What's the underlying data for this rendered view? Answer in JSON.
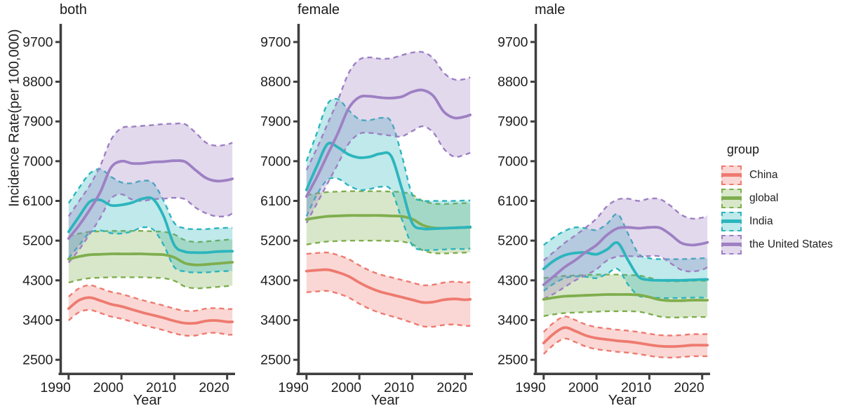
{
  "figure": {
    "y_axis_title": "Incidence Rate(per 100,000)",
    "x_axis_title": "Year",
    "axis_color": "#3e3e3e",
    "text_color": "#1f1f1f",
    "y_ticks": [
      9700,
      8800,
      7900,
      7000,
      6100,
      5200,
      4300,
      3400,
      2500
    ],
    "x_ticks": [
      1990,
      2000,
      2010,
      2020
    ],
    "legend": {
      "title": "group",
      "items": [
        {
          "label": "China",
          "color": "#ee7a70"
        },
        {
          "label": "global",
          "color": "#7fae4e"
        },
        {
          "label": "India",
          "color": "#2cb5bd"
        },
        {
          "label": "the United States",
          "color": "#9e80c3"
        }
      ]
    }
  },
  "chart_data": {
    "type": "line",
    "subtype": "faceted-lines-with-confidence-ribbons",
    "xlabel": "Year",
    "ylabel": "Incidence Rate(per 100,000)",
    "x_domain": [
      1988.7,
      2021.1
    ],
    "y_domain": [
      2200,
      10080
    ],
    "ribbon_opacity": 0.3,
    "legend_position": "right",
    "years": [
      1990,
      1992,
      1994,
      1996,
      1998,
      2000,
      2002,
      2004,
      2006,
      2008,
      2010,
      2012,
      2014,
      2016,
      2018,
      2020,
      2021
    ],
    "facets": [
      {
        "title": "both",
        "series": [
          {
            "name": "China",
            "color": "#ee7a70",
            "center": [
              3660,
              3850,
              3910,
              3840,
              3760,
              3710,
              3640,
              3570,
              3510,
              3450,
              3380,
              3330,
              3330,
              3380,
              3390,
              3360,
              3360
            ],
            "upper": [
              3930,
              4120,
              4190,
              4120,
              4040,
              3990,
              3920,
              3850,
              3790,
              3730,
              3660,
              3610,
              3610,
              3660,
              3670,
              3650,
              3650
            ],
            "lower": [
              3390,
              3580,
              3630,
              3560,
              3480,
              3430,
              3360,
              3290,
              3230,
              3170,
              3100,
              3050,
              3050,
              3100,
              3110,
              3070,
              3070
            ]
          },
          {
            "name": "global",
            "color": "#7fae4e",
            "center": [
              4780,
              4840,
              4880,
              4890,
              4900,
              4900,
              4900,
              4900,
              4890,
              4880,
              4820,
              4690,
              4650,
              4660,
              4680,
              4700,
              4710
            ],
            "upper": [
              5300,
              5360,
              5400,
              5410,
              5420,
              5420,
              5420,
              5420,
              5410,
              5400,
              5340,
              5210,
              5170,
              5180,
              5200,
              5220,
              5230
            ],
            "lower": [
              4250,
              4310,
              4350,
              4360,
              4370,
              4370,
              4370,
              4370,
              4360,
              4350,
              4290,
              4160,
              4120,
              4130,
              4150,
              4170,
              4180
            ]
          },
          {
            "name": "India",
            "color": "#2cb5bd",
            "center": [
              5400,
              5750,
              6080,
              6120,
              6000,
              6010,
              6060,
              6150,
              6140,
              5750,
              5100,
              4950,
              4930,
              4930,
              4950,
              4960,
              4960
            ],
            "upper": [
              6050,
              6400,
              6720,
              6820,
              6650,
              6520,
              6500,
              6560,
              6500,
              6100,
              5600,
              5480,
              5460,
              5460,
              5480,
              5490,
              5490
            ],
            "lower": [
              4800,
              5100,
              5380,
              5430,
              5370,
              5360,
              5410,
              5500,
              5450,
              5100,
              4600,
              4500,
              4480,
              4480,
              4500,
              4510,
              4510
            ]
          },
          {
            "name": "the United States",
            "color": "#9e80c3",
            "center": [
              5250,
              5550,
              5900,
              6300,
              6850,
              7000,
              6950,
              6950,
              6980,
              6990,
              7010,
              6990,
              6800,
              6620,
              6550,
              6570,
              6600
            ],
            "upper": [
              5750,
              6100,
              6450,
              6900,
              7480,
              7750,
              7780,
              7800,
              7820,
              7840,
              7850,
              7840,
              7650,
              7420,
              7350,
              7380,
              7420
            ],
            "lower": [
              4700,
              5000,
              5350,
              5720,
              6150,
              6250,
              6130,
              6100,
              6140,
              6150,
              6170,
              6140,
              5950,
              5820,
              5750,
              5760,
              5820
            ]
          }
        ]
      },
      {
        "title": "female",
        "series": [
          {
            "name": "China",
            "color": "#ee7a70",
            "center": [
              4510,
              4530,
              4540,
              4480,
              4390,
              4250,
              4130,
              4040,
              3980,
              3920,
              3860,
              3800,
              3810,
              3860,
              3880,
              3860,
              3870
            ],
            "upper": [
              4900,
              4920,
              4930,
              4870,
              4780,
              4640,
              4520,
              4430,
              4370,
              4310,
              4250,
              4190,
              4200,
              4250,
              4270,
              4250,
              4260
            ],
            "lower": [
              4030,
              4050,
              4060,
              4000,
              3910,
              3770,
              3650,
              3560,
              3490,
              3420,
              3340,
              3260,
              3250,
              3290,
              3300,
              3270,
              3270
            ]
          },
          {
            "name": "global",
            "color": "#7fae4e",
            "center": [
              5680,
              5720,
              5750,
              5760,
              5770,
              5770,
              5770,
              5770,
              5760,
              5750,
              5690,
              5550,
              5490,
              5480,
              5490,
              5500,
              5500
            ],
            "upper": [
              6230,
              6270,
              6300,
              6310,
              6320,
              6320,
              6320,
              6320,
              6310,
              6300,
              6240,
              6100,
              6040,
              6030,
              6040,
              6050,
              6050
            ],
            "lower": [
              5110,
              5150,
              5180,
              5190,
              5200,
              5200,
              5200,
              5200,
              5190,
              5180,
              5120,
              4980,
              4920,
              4910,
              4920,
              4930,
              4930
            ]
          },
          {
            "name": "India",
            "color": "#2cb5bd",
            "center": [
              6350,
              6900,
              7390,
              7310,
              7150,
              7080,
              7100,
              7170,
              7120,
              6400,
              5600,
              5470,
              5470,
              5480,
              5490,
              5500,
              5510
            ],
            "upper": [
              7000,
              7650,
              8300,
              8400,
              8150,
              7950,
              7930,
              7980,
              7900,
              7150,
              6250,
              6110,
              6100,
              6100,
              6100,
              6110,
              6110
            ],
            "lower": [
              5750,
              6250,
              6580,
              6600,
              6450,
              6350,
              6370,
              6420,
              6350,
              5700,
              5100,
              4990,
              4990,
              5000,
              5010,
              5010,
              5020
            ]
          },
          {
            "name": "the United States",
            "color": "#9e80c3",
            "center": [
              6200,
              6650,
              7150,
              7650,
              8200,
              8450,
              8470,
              8440,
              8430,
              8460,
              8570,
              8610,
              8480,
              8120,
              7980,
              8010,
              8050
            ],
            "upper": [
              6800,
              7300,
              7850,
              8400,
              9000,
              9300,
              9350,
              9320,
              9330,
              9400,
              9460,
              9470,
              9330,
              9000,
              8850,
              8860,
              8900
            ],
            "lower": [
              5600,
              6050,
              6500,
              6950,
              7400,
              7620,
              7640,
              7610,
              7580,
              7560,
              7680,
              7790,
              7650,
              7280,
              7100,
              7150,
              7190
            ]
          }
        ]
      },
      {
        "title": "male",
        "series": [
          {
            "name": "China",
            "color": "#ee7a70",
            "center": [
              2880,
              3100,
              3230,
              3150,
              3050,
              2990,
              2960,
              2930,
              2910,
              2880,
              2840,
              2810,
              2800,
              2810,
              2830,
              2830,
              2830
            ],
            "upper": [
              3130,
              3350,
              3480,
              3400,
              3300,
              3240,
              3210,
              3180,
              3160,
              3130,
              3090,
              3060,
              3050,
              3060,
              3080,
              3080,
              3080
            ],
            "lower": [
              2630,
              2850,
              2980,
              2900,
              2800,
              2740,
              2710,
              2680,
              2660,
              2630,
              2590,
              2560,
              2550,
              2560,
              2580,
              2580,
              2580
            ]
          },
          {
            "name": "global",
            "color": "#7fae4e",
            "center": [
              3870,
              3910,
              3940,
              3950,
              3960,
              3970,
              3980,
              3980,
              3980,
              3970,
              3920,
              3860,
              3840,
              3840,
              3850,
              3850,
              3850
            ],
            "upper": [
              4350,
              4380,
              4400,
              4410,
              4420,
              4430,
              4430,
              4430,
              4420,
              4410,
              4360,
              4300,
              4280,
              4280,
              4290,
              4290,
              4290
            ],
            "lower": [
              3490,
              3530,
              3560,
              3570,
              3580,
              3590,
              3600,
              3600,
              3600,
              3590,
              3540,
              3480,
              3460,
              3460,
              3470,
              3470,
              3470
            ]
          },
          {
            "name": "India",
            "color": "#2cb5bd",
            "center": [
              4560,
              4750,
              4870,
              4920,
              4930,
              4890,
              5000,
              5150,
              4750,
              4380,
              4310,
              4300,
              4300,
              4300,
              4310,
              4320,
              4320
            ],
            "upper": [
              5100,
              5280,
              5420,
              5500,
              5480,
              5440,
              5580,
              5800,
              5350,
              4900,
              4800,
              4780,
              4780,
              4780,
              4790,
              4800,
              4800
            ],
            "lower": [
              4060,
              4230,
              4350,
              4390,
              4380,
              4350,
              4450,
              4560,
              4200,
              3950,
              3920,
              3900,
              3900,
              3900,
              3910,
              3910,
              3910
            ]
          },
          {
            "name": "the United States",
            "color": "#9e80c3",
            "center": [
              4200,
              4400,
              4600,
              4760,
              4940,
              5100,
              5330,
              5480,
              5500,
              5480,
              5500,
              5490,
              5340,
              5150,
              5100,
              5130,
              5160
            ],
            "upper": [
              4750,
              4950,
              5150,
              5320,
              5500,
              5700,
              5980,
              6130,
              6150,
              6100,
              6150,
              6140,
              5990,
              5790,
              5700,
              5720,
              5760
            ],
            "lower": [
              3880,
              4000,
              4150,
              4300,
              4420,
              4550,
              4750,
              4840,
              4850,
              4840,
              4850,
              4840,
              4690,
              4540,
              4500,
              4540,
              4600
            ]
          }
        ]
      }
    ]
  }
}
